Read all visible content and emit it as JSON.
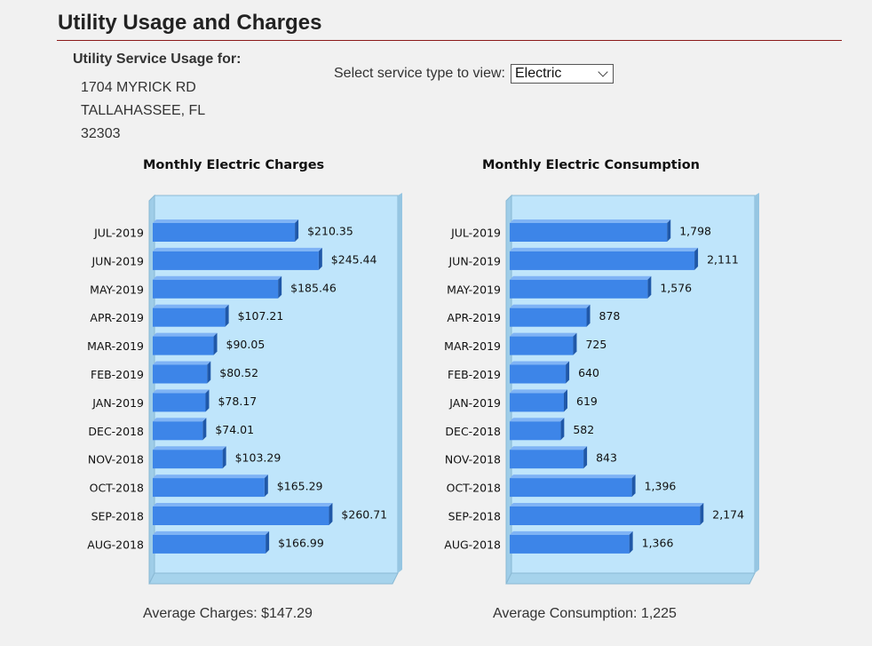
{
  "page": {
    "title": "Utility Usage and Charges",
    "usage_label": "Utility Service Usage for:",
    "address": [
      "1704 MYRICK RD",
      "TALLAHASSEE, FL",
      "32303"
    ],
    "select_label": "Select service type to view:",
    "select_value": "Electric"
  },
  "colors": {
    "title_rule": "#8b1a1a",
    "bar_front": "#3d85e8",
    "panel": "#bfe5fb"
  },
  "chart_data": [
    {
      "type": "bar",
      "orientation": "horizontal",
      "title": "Monthly Electric Charges",
      "categories": [
        "JUL-2019",
        "JUN-2019",
        "MAY-2019",
        "APR-2019",
        "MAR-2019",
        "FEB-2019",
        "JAN-2019",
        "DEC-2018",
        "NOV-2018",
        "OCT-2018",
        "SEP-2018",
        "AUG-2018"
      ],
      "values": [
        210.35,
        245.44,
        185.46,
        107.21,
        90.05,
        80.52,
        78.17,
        74.01,
        103.29,
        165.29,
        260.71,
        166.99
      ],
      "labels": [
        "$210.35",
        "$245.44",
        "$185.46",
        "$107.21",
        "$90.05",
        "$80.52",
        "$78.17",
        "$74.01",
        "$103.29",
        "$165.29",
        "$260.71",
        "$166.99"
      ],
      "summary": "Average Charges: $147.29",
      "xlim": [
        0,
        360
      ]
    },
    {
      "type": "bar",
      "orientation": "horizontal",
      "title": "Monthly Electric Consumption",
      "categories": [
        "JUL-2019",
        "JUN-2019",
        "MAY-2019",
        "APR-2019",
        "MAR-2019",
        "FEB-2019",
        "JAN-2019",
        "DEC-2018",
        "NOV-2018",
        "OCT-2018",
        "SEP-2018",
        "AUG-2018"
      ],
      "values": [
        1798,
        2111,
        1576,
        878,
        725,
        640,
        619,
        582,
        843,
        1396,
        2174,
        1366
      ],
      "labels": [
        "1,798",
        "2,111",
        "1,576",
        "878",
        "725",
        "640",
        "619",
        "582",
        "843",
        "1,396",
        "2,174",
        "1,366"
      ],
      "summary": "Average Consumption: 1,225",
      "xlim": [
        0,
        2780
      ]
    }
  ]
}
